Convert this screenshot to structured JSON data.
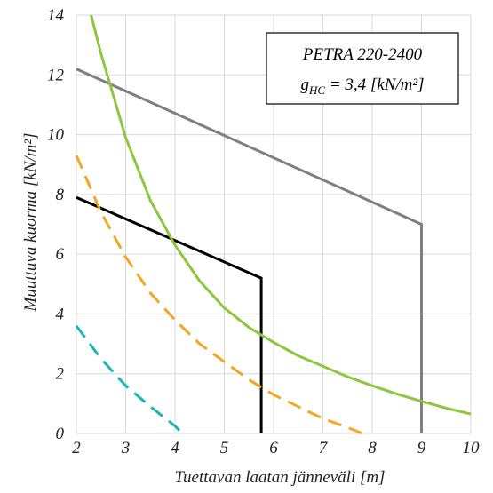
{
  "chart_data": {
    "type": "line",
    "title": "",
    "xlabel": "Tuettavan laatan jänneväli [m]",
    "ylabel": "Muuttuva kuorma [kN/m²]",
    "xlim": [
      2,
      10
    ],
    "ylim": [
      0,
      14
    ],
    "xticks": [
      2,
      3,
      4,
      5,
      6,
      7,
      8,
      9,
      10
    ],
    "yticks": [
      0,
      2,
      4,
      6,
      8,
      10,
      12,
      14
    ],
    "grid": true,
    "annotation": {
      "line1": "PETRA 220-2400",
      "line2_prefix": "g",
      "line2_sub": "HC",
      "line2_suffix": " = 3,4 [kN/m²]"
    },
    "series": [
      {
        "color": "#808080",
        "style": "solid",
        "x": [
          2,
          9,
          9
        ],
        "y": [
          12.2,
          7.0,
          0
        ]
      },
      {
        "color": "#000000",
        "style": "solid",
        "x": [
          2,
          5.75,
          5.75
        ],
        "y": [
          7.9,
          5.2,
          0
        ]
      },
      {
        "color": "#8dc63f",
        "style": "solid",
        "x": [
          2.3,
          2.5,
          3,
          3.5,
          4,
          4.5,
          5,
          5.5,
          6,
          6.5,
          7,
          7.5,
          8,
          8.5,
          9,
          9.5,
          10
        ],
        "y": [
          14,
          12.7,
          9.9,
          7.8,
          6.3,
          5.1,
          4.2,
          3.55,
          3.05,
          2.6,
          2.25,
          1.9,
          1.6,
          1.32,
          1.08,
          0.85,
          0.65
        ]
      },
      {
        "color": "#f5a623",
        "style": "dashed",
        "x": [
          2,
          2.5,
          3,
          3.5,
          4,
          4.5,
          5,
          5.5,
          6,
          6.5,
          7,
          7.5,
          7.8
        ],
        "y": [
          9.3,
          7.4,
          5.9,
          4.7,
          3.8,
          3.0,
          2.4,
          1.8,
          1.3,
          0.9,
          0.5,
          0.2,
          0
        ]
      },
      {
        "color": "#1fb5b5",
        "style": "dashed",
        "x": [
          2,
          2.5,
          3,
          3.5,
          4,
          4.15
        ],
        "y": [
          3.6,
          2.5,
          1.6,
          0.9,
          0.25,
          0
        ]
      }
    ]
  }
}
